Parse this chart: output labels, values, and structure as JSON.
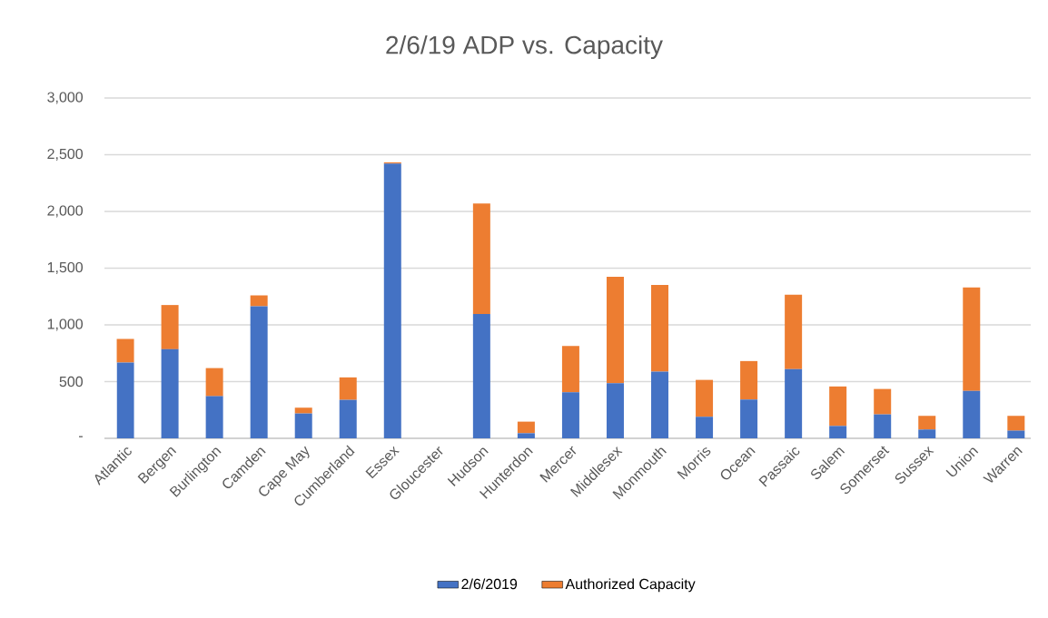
{
  "chart_data": {
    "type": "bar",
    "title": "2/6/19 ADP vs. Capacity",
    "categories": [
      "Atlantic",
      "Bergen",
      "Burlington",
      "Camden",
      "Cape May",
      "Cumberland",
      "Essex",
      "Gloucester",
      "Hudson",
      "Hunterdon",
      "Mercer",
      "Middlesex",
      "Monmouth",
      "Morris",
      "Ocean",
      "Passaic",
      "Salem",
      "Somerset",
      "Sussex",
      "Union",
      "Warren"
    ],
    "series": [
      {
        "name": "2/6/2019",
        "color": "#4472c4",
        "values": [
          668,
          785,
          371,
          1164,
          219,
          339,
          2422,
          0,
          1095,
          45,
          406,
          486,
          587,
          190,
          342,
          609,
          109,
          211,
          77,
          417,
          67
        ]
      },
      {
        "name": "Authorized Capacity",
        "color": "#ed7d31",
        "values": [
          208,
          390,
          248,
          96,
          51,
          198,
          11,
          0,
          974,
          102,
          408,
          937,
          764,
          325,
          339,
          657,
          348,
          224,
          121,
          913,
          131
        ]
      }
    ],
    "stacked": true,
    "ylim": [
      0,
      3000
    ],
    "yticks": [
      {
        "value": 0,
        "label": "-"
      },
      {
        "value": 500,
        "label": "500"
      },
      {
        "value": 1000,
        "label": "1,000"
      },
      {
        "value": 1500,
        "label": "1,500"
      },
      {
        "value": 2000,
        "label": "2,000"
      },
      {
        "value": 2500,
        "label": "2,500"
      },
      {
        "value": 3000,
        "label": "3,000"
      }
    ],
    "grid": "y",
    "legend": "bottom"
  }
}
